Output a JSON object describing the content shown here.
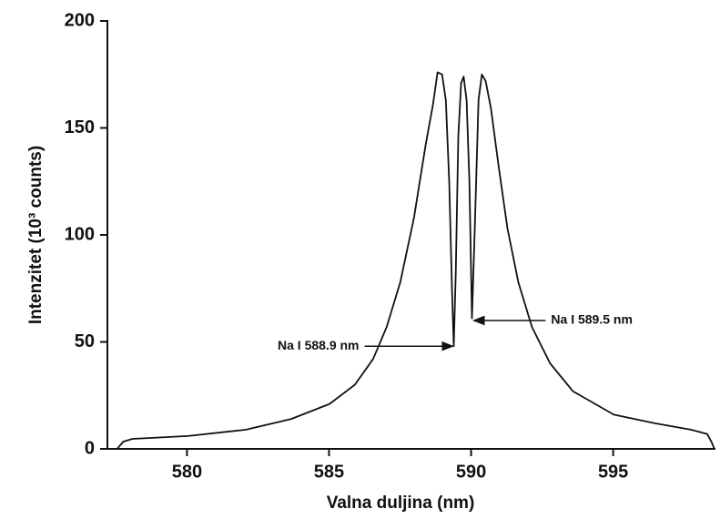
{
  "chart_data": {
    "type": "line",
    "x_label": "Valna duljina (nm)",
    "y_label": "Intenzitet (10³ counts)",
    "xlim": [
      577.2,
      598.6
    ],
    "ylim": [
      0,
      200
    ],
    "xticks": [
      580,
      585,
      590,
      595
    ],
    "yticks": [
      0,
      50,
      100,
      150,
      200
    ],
    "grid": false,
    "series": [
      {
        "color": "#111111",
        "x": [
          577.22,
          577.54,
          577.76,
          578.08,
          580.03,
          582.08,
          583.67,
          585.02,
          585.91,
          586.55,
          587.03,
          587.51,
          587.99,
          588.4,
          588.66,
          588.82,
          588.98,
          589.11,
          589.23,
          589.33,
          589.39,
          589.46,
          589.55,
          589.65,
          589.74,
          589.84,
          589.94,
          590.03,
          590.13,
          590.26,
          590.38,
          590.51,
          590.7,
          590.96,
          591.28,
          591.66,
          592.14,
          592.78,
          593.58,
          595.02,
          596.45,
          597.73,
          598.31,
          598.47,
          598.56
        ],
        "values": [
          0,
          0,
          3.4,
          4.7,
          6,
          9,
          14,
          21,
          30,
          42,
          57,
          78,
          108,
          142,
          161,
          176,
          175,
          163,
          125,
          74,
          48,
          82,
          146,
          171,
          174,
          163,
          125,
          61,
          103,
          163,
          175,
          172,
          159,
          133,
          103,
          78,
          57,
          40,
          27,
          16,
          12,
          9,
          7,
          3,
          0
        ]
      }
    ],
    "annotations": [
      {
        "text": "Na I 588.9 nm",
        "x": 589.39,
        "y": 48
      },
      {
        "text": "Na I 589.5 nm",
        "x": 590.06,
        "y": 60
      }
    ]
  }
}
